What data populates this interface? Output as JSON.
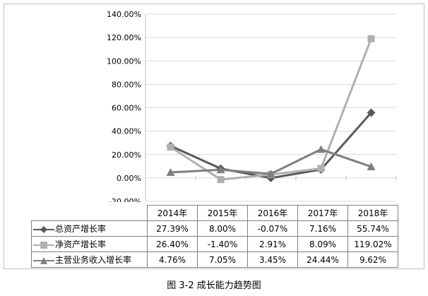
{
  "chart_data": {
    "type": "line",
    "title": "",
    "xlabel": "",
    "ylabel": "",
    "categories": [
      "2014年",
      "2015年",
      "2016年",
      "2017年",
      "2018年"
    ],
    "ylim": [
      -20,
      140
    ],
    "yticks": [
      -20,
      0,
      20,
      40,
      60,
      80,
      100,
      120,
      140
    ],
    "ytick_labels": [
      "-20.00%",
      "0.00%",
      "20.00%",
      "40.00%",
      "60.00%",
      "80.00%",
      "100.00%",
      "120.00%",
      "140.00%"
    ],
    "grid": "horizontal",
    "legend": "data-table",
    "series": [
      {
        "name": "总资产增长率",
        "values": [
          27.39,
          8.0,
          -0.07,
          7.16,
          55.74
        ],
        "display": [
          "27.39%",
          "8.00%",
          "-0.07%",
          "7.16%",
          "55.74%"
        ],
        "color": "#595959",
        "marker": "diamond"
      },
      {
        "name": "净资产增长率",
        "values": [
          26.4,
          -1.4,
          2.91,
          8.09,
          119.02
        ],
        "display": [
          "26.40%",
          "-1.40%",
          "2.91%",
          "8.09%",
          "119.02%"
        ],
        "color": "#b0b0b0",
        "marker": "square"
      },
      {
        "name": "主营业务收入增长率",
        "values": [
          4.76,
          7.05,
          3.45,
          24.44,
          9.62
        ],
        "display": [
          "4.76%",
          "7.05%",
          "3.45%",
          "24.44%",
          "9.62%"
        ],
        "color": "#7f7f7f",
        "marker": "triangle"
      }
    ]
  },
  "caption": "图 3-2  成长能力趋势图"
}
